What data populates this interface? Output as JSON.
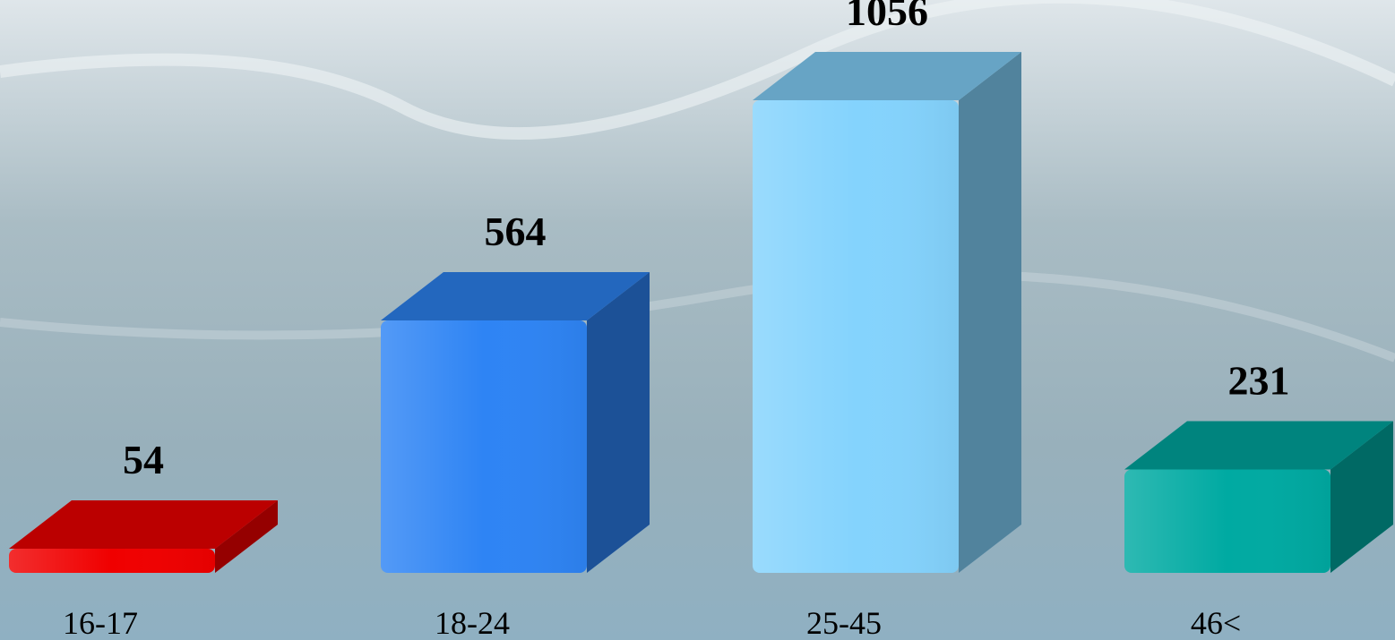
{
  "chart_data": {
    "type": "bar",
    "categories": [
      "16-17",
      "18-24",
      "25-45",
      "46<"
    ],
    "values": [
      54,
      564,
      1056,
      231
    ],
    "colors": [
      "#f00000",
      "#2e84f4",
      "#84d3fd",
      "#00aaa2"
    ]
  }
}
